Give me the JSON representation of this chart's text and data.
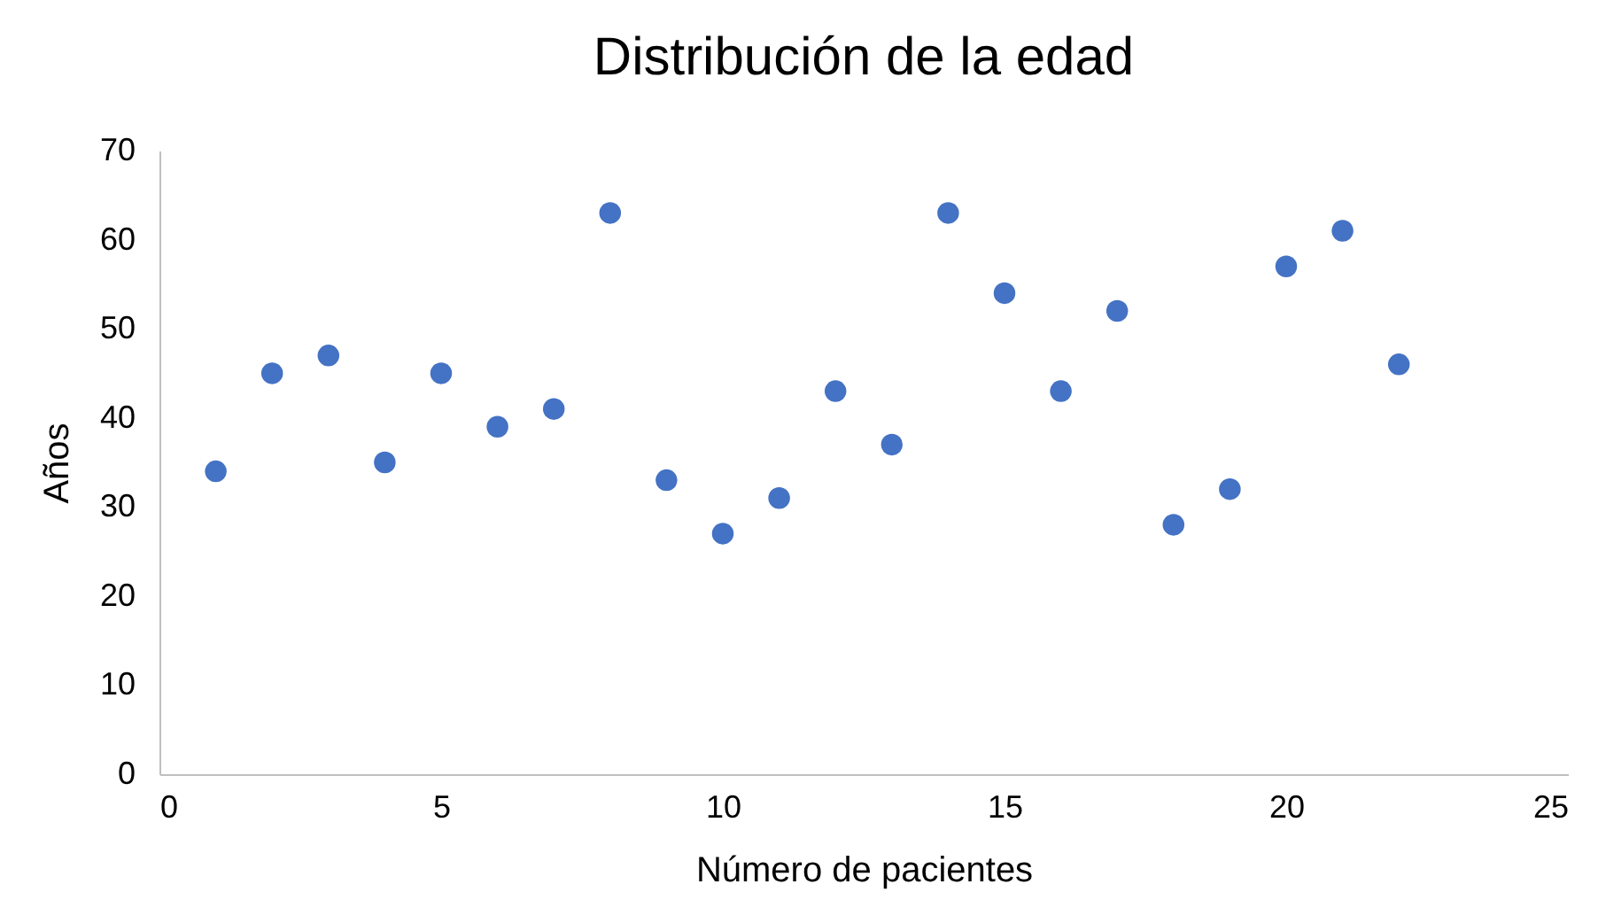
{
  "chart_data": {
    "type": "scatter",
    "title": "Distribución de la edad",
    "xlabel": "Número de pacientes",
    "ylabel": "Años",
    "x": [
      1,
      2,
      3,
      4,
      5,
      6,
      7,
      8,
      9,
      10,
      11,
      12,
      13,
      14,
      15,
      16,
      17,
      18,
      19,
      20,
      21,
      22
    ],
    "series": [
      {
        "color": "#4472c4",
        "values": [
          34,
          45,
          47,
          35,
          45,
          39,
          41,
          63,
          33,
          27,
          31,
          43,
          37,
          63,
          54,
          43,
          52,
          28,
          32,
          57,
          61,
          46
        ]
      }
    ],
    "xlim": [
      0,
      25
    ],
    "xticks": [
      0,
      5,
      10,
      15,
      20,
      25
    ],
    "ylim": [
      0,
      70
    ],
    "yticks": [
      0,
      10,
      20,
      30,
      40,
      50,
      60,
      70
    ],
    "grid": false,
    "marker": "circle"
  }
}
